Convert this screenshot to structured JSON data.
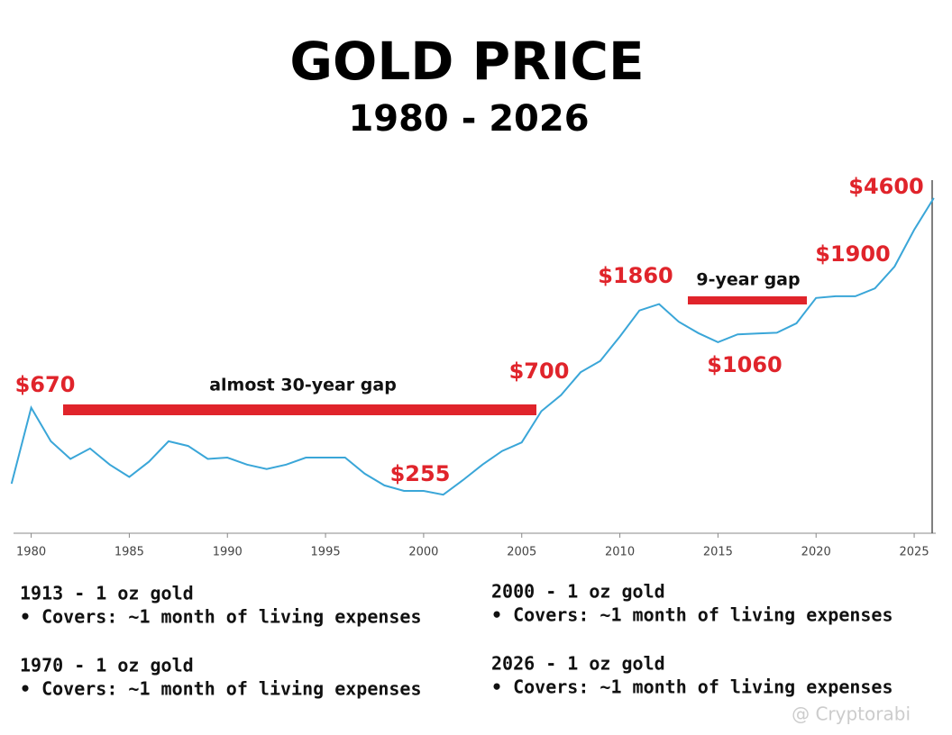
{
  "chart_data": {
    "type": "line",
    "title": "GOLD PRICE",
    "subtitle": "1980 - 2026",
    "x": [
      1979,
      1980,
      1981,
      1982,
      1983,
      1984,
      1985,
      1986,
      1987,
      1988,
      1989,
      1990,
      1991,
      1992,
      1993,
      1994,
      1995,
      1996,
      1997,
      1998,
      1999,
      2000,
      2001,
      2002,
      2003,
      2004,
      2005,
      2006,
      2007,
      2008,
      2009,
      2010,
      2011,
      2012,
      2013,
      2014,
      2015,
      2016,
      2017,
      2018,
      2019,
      2020,
      2021,
      2022,
      2023,
      2024,
      2025,
      2026
    ],
    "series": [
      {
        "name": "Gold price",
        "color": "#3aa6d8",
        "values": [
          300,
          620,
          450,
          380,
          420,
          360,
          320,
          370,
          450,
          430,
          380,
          385,
          360,
          345,
          360,
          385,
          385,
          385,
          330,
          295,
          280,
          280,
          270,
          310,
          360,
          410,
          445,
          600,
          700,
          870,
          970,
          1225,
          1570,
          1670,
          1410,
          1265,
          1160,
          1250,
          1260,
          1270,
          1390,
          1770,
          1800,
          1800,
          1940,
          2390,
          3400,
          4600
        ]
      }
    ],
    "xlim": [
      1979.1,
      2026.1
    ],
    "xticks": [
      1980,
      1985,
      1990,
      1995,
      2000,
      2005,
      2010,
      2015,
      2020,
      2025
    ],
    "ylim": [
      190,
      5700
    ],
    "log_scale": true,
    "annotations": [
      "$4600",
      "$1900",
      "$1860",
      "9-year gap",
      "$700",
      "$1060",
      "$670",
      "almost 30-year gap",
      "$255"
    ]
  },
  "notes": [
    {
      "title": "1913 - 1 oz gold",
      "detail": "• Covers: ~1 month of living expenses"
    },
    {
      "title": "2000 - 1 oz gold",
      "detail": "• Covers: ~1 month of living expenses"
    },
    {
      "title": "1970 - 1 oz gold",
      "detail": "• Covers: ~1 month of living expenses"
    },
    {
      "title": "2026 - 1 oz gold",
      "detail": "• Covers: ~1 month of living expenses"
    }
  ],
  "watermark": "@ Cryptorabi"
}
